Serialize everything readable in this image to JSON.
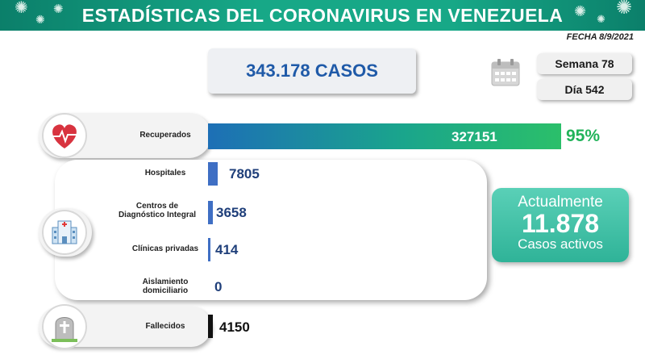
{
  "header": {
    "title": "ESTADÍSTICAS DEL CORONAVIRUS EN VENEZUELA"
  },
  "date": "FECHA 8/9/2021",
  "total_cases": "343.178 CASOS",
  "week": "Semana 78",
  "day": "Día 542",
  "recovered": {
    "label": "Recuperados",
    "value": "327151",
    "percent": "95%"
  },
  "locations": [
    {
      "label": "Hospitales",
      "value": "7805"
    },
    {
      "label_line1": "Centros de",
      "label_line2": "Diagnóstico Integral",
      "value": "3658"
    },
    {
      "label": "Clínicas privadas",
      "value": "414"
    },
    {
      "label_line1": "Aislamiento",
      "label_line2": "domiciliario",
      "value": "0"
    }
  ],
  "deaths": {
    "label": "Fallecidos",
    "value": "4150"
  },
  "active": {
    "line1": "Actualmente",
    "number": "11.878",
    "line3": "Casos activos"
  },
  "colors": {
    "header": "#17a887",
    "recovered_bar": "#1aa58c",
    "location_bar": "#3f6fc4",
    "death_bar": "#111111",
    "percent": "#22b35a"
  },
  "icons": [
    "virus-icon",
    "calendar-icon",
    "heart-pulse-icon",
    "hospital-icon",
    "gravestone-icon"
  ]
}
